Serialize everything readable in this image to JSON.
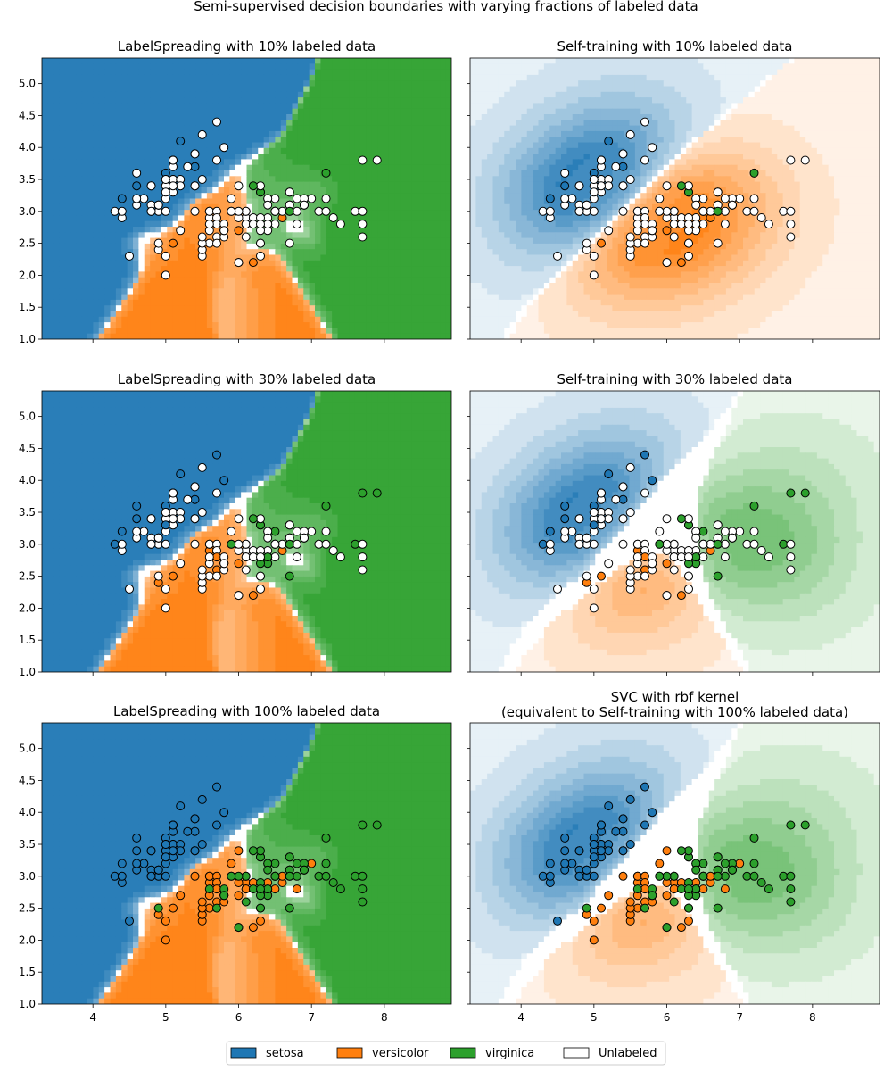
{
  "chart_data": {
    "type": "scatter",
    "suptitle": "Semi-supervised decision boundaries with varying fractions of labeled data",
    "xlim": [
      3.3,
      8.92
    ],
    "ylim": [
      1.0,
      5.4
    ],
    "xticks": [
      "4",
      "5",
      "6",
      "7",
      "8"
    ],
    "yticks": [
      "1.0",
      "1.5",
      "2.0",
      "2.5",
      "3.0",
      "3.5",
      "4.0",
      "4.5",
      "5.0"
    ],
    "grid": false,
    "classes": [
      {
        "name": "setosa",
        "color": "#1f77b4"
      },
      {
        "name": "versicolor",
        "color": "#ff7f0e"
      },
      {
        "name": "virginica",
        "color": "#2ca02c"
      }
    ],
    "unlabeled": {
      "name": "Unlabeled",
      "color": "#ffffff"
    },
    "legend_placement": "bottom-center",
    "points": {
      "x": [
        5.1,
        4.9,
        4.7,
        4.6,
        5.0,
        5.4,
        4.6,
        5.0,
        4.4,
        4.9,
        5.4,
        4.8,
        4.8,
        4.3,
        5.8,
        5.7,
        5.4,
        5.1,
        5.7,
        5.1,
        5.4,
        5.1,
        4.6,
        5.1,
        4.8,
        5.0,
        5.0,
        5.2,
        5.2,
        4.7,
        4.8,
        5.4,
        5.2,
        5.5,
        4.9,
        5.0,
        5.5,
        4.9,
        4.4,
        5.1,
        5.0,
        4.5,
        4.4,
        5.0,
        5.1,
        4.8,
        5.1,
        4.6,
        5.3,
        5.0,
        7.0,
        6.4,
        6.9,
        5.5,
        6.5,
        5.7,
        6.3,
        4.9,
        6.6,
        5.2,
        5.0,
        5.9,
        6.0,
        6.1,
        5.6,
        6.7,
        5.6,
        5.8,
        6.2,
        5.6,
        5.9,
        6.1,
        6.3,
        6.1,
        6.4,
        6.6,
        6.8,
        6.7,
        6.0,
        5.7,
        5.5,
        5.5,
        5.8,
        6.0,
        5.4,
        6.0,
        6.7,
        6.3,
        5.6,
        5.5,
        5.5,
        6.1,
        5.8,
        5.0,
        5.6,
        5.7,
        5.7,
        6.2,
        5.1,
        5.7,
        6.3,
        5.8,
        7.1,
        6.3,
        6.5,
        7.6,
        4.9,
        7.3,
        6.7,
        7.2,
        6.5,
        6.4,
        6.8,
        5.7,
        5.8,
        6.4,
        6.5,
        7.7,
        7.7,
        6.0,
        6.9,
        5.6,
        7.7,
        6.3,
        6.7,
        7.2,
        6.2,
        6.1,
        6.4,
        7.2,
        7.4,
        7.9,
        6.4,
        6.3,
        6.1,
        7.7,
        6.3,
        6.4,
        6.0,
        6.9,
        6.7,
        6.9,
        5.8,
        6.8,
        6.7,
        6.7,
        6.3,
        6.5,
        6.2,
        5.9
      ],
      "y": [
        3.5,
        3.0,
        3.2,
        3.1,
        3.6,
        3.9,
        3.4,
        3.4,
        2.9,
        3.1,
        3.7,
        3.4,
        3.0,
        3.0,
        4.0,
        4.4,
        3.9,
        3.5,
        3.8,
        3.8,
        3.4,
        3.7,
        3.6,
        3.3,
        3.4,
        3.0,
        3.4,
        3.5,
        3.4,
        3.2,
        3.1,
        3.4,
        4.1,
        4.2,
        3.1,
        3.2,
        3.5,
        3.1,
        3.0,
        3.4,
        3.5,
        2.3,
        3.2,
        3.5,
        3.8,
        3.0,
        3.8,
        3.2,
        3.7,
        3.3,
        3.2,
        3.2,
        3.1,
        2.3,
        2.8,
        2.8,
        3.3,
        2.4,
        2.9,
        2.7,
        2.0,
        3.0,
        2.2,
        2.9,
        2.9,
        3.1,
        3.0,
        2.7,
        2.2,
        2.5,
        3.2,
        2.8,
        2.5,
        2.8,
        2.9,
        3.0,
        2.8,
        3.0,
        2.9,
        2.6,
        2.4,
        2.4,
        2.7,
        2.7,
        3.0,
        3.4,
        3.1,
        2.3,
        3.0,
        2.5,
        2.6,
        3.0,
        2.6,
        2.3,
        2.7,
        3.0,
        2.9,
        2.9,
        2.5,
        2.8,
        3.3,
        2.7,
        3.0,
        2.9,
        3.0,
        3.0,
        2.5,
        2.9,
        2.5,
        3.6,
        3.2,
        2.7,
        3.0,
        2.5,
        2.8,
        3.2,
        3.0,
        3.8,
        2.6,
        2.2,
        3.2,
        2.8,
        2.8,
        2.7,
        3.3,
        3.2,
        2.8,
        3.0,
        2.8,
        3.0,
        2.8,
        3.8,
        2.8,
        2.8,
        2.6,
        3.0,
        3.4,
        3.1,
        3.0,
        3.1,
        3.1,
        3.1,
        2.7,
        3.2,
        3.3,
        3.0,
        2.5,
        3.0,
        3.4,
        3.0
      ],
      "class": [
        0,
        0,
        0,
        0,
        0,
        0,
        0,
        0,
        0,
        0,
        0,
        0,
        0,
        0,
        0,
        0,
        0,
        0,
        0,
        0,
        0,
        0,
        0,
        0,
        0,
        0,
        0,
        0,
        0,
        0,
        0,
        0,
        0,
        0,
        0,
        0,
        0,
        0,
        0,
        0,
        0,
        0,
        0,
        0,
        0,
        0,
        0,
        0,
        0,
        0,
        1,
        1,
        1,
        1,
        1,
        1,
        1,
        1,
        1,
        1,
        1,
        1,
        1,
        1,
        1,
        1,
        1,
        1,
        1,
        1,
        1,
        1,
        1,
        1,
        1,
        1,
        1,
        1,
        1,
        1,
        1,
        1,
        1,
        1,
        1,
        1,
        1,
        1,
        1,
        1,
        1,
        1,
        1,
        1,
        1,
        1,
        1,
        1,
        1,
        1,
        2,
        2,
        2,
        2,
        2,
        2,
        2,
        2,
        2,
        2,
        2,
        2,
        2,
        2,
        2,
        2,
        2,
        2,
        2,
        2,
        2,
        2,
        2,
        2,
        2,
        2,
        2,
        2,
        2,
        2,
        2,
        2,
        2,
        2,
        2,
        2,
        2,
        2,
        2,
        2,
        2,
        2,
        2,
        2,
        2,
        2,
        2,
        2,
        2,
        2
      ]
    },
    "panels": [
      {
        "title": "LabelSpreading with 10% labeled data",
        "method": "LabelSpreading",
        "labeled_fraction": 0.1,
        "labeled_indices": [
          32,
          10,
          4,
          6,
          20,
          42,
          2,
          58,
          83,
          98,
          68,
          148,
          100,
          145,
          109
        ]
      },
      {
        "title": "Self-training with 10% labeled data",
        "method": "Self-training",
        "labeled_fraction": 0.1,
        "labeled_indices": [
          32,
          10,
          4,
          6,
          20,
          42,
          2,
          58,
          83,
          98,
          68,
          148,
          100,
          145,
          109
        ]
      },
      {
        "title": "LabelSpreading with 30% labeled data",
        "method": "LabelSpreading",
        "labeled_fraction": 0.3,
        "labeled_indices": [
          15,
          32,
          14,
          10,
          19,
          22,
          4,
          6,
          7,
          20,
          49,
          42,
          2,
          13,
          64,
          99,
          83,
          80,
          79,
          98,
          57,
          68,
          58,
          131,
          117,
          109,
          148,
          100,
          124,
          110,
          139,
          145,
          149,
          105,
          111,
          123,
          132,
          108
        ]
      },
      {
        "title": "Self-training with 30% labeled data",
        "method": "Self-training",
        "labeled_fraction": 0.3,
        "labeled_indices": [
          15,
          32,
          14,
          10,
          19,
          22,
          4,
          6,
          7,
          20,
          49,
          42,
          2,
          13,
          64,
          99,
          83,
          80,
          79,
          98,
          57,
          68,
          58,
          131,
          117,
          109,
          148,
          100,
          124,
          110,
          139,
          145,
          149,
          105,
          111,
          123,
          132,
          108
        ]
      },
      {
        "title": "LabelSpreading with 100% labeled data",
        "method": "LabelSpreading",
        "labeled_fraction": 1.0,
        "labeled_indices": "all"
      },
      {
        "title": "SVC with rbf kernel",
        "title_line2": "(equivalent to Self-training with 100% labeled data)",
        "method": "SVC",
        "labeled_fraction": 1.0,
        "labeled_indices": "all"
      }
    ]
  }
}
